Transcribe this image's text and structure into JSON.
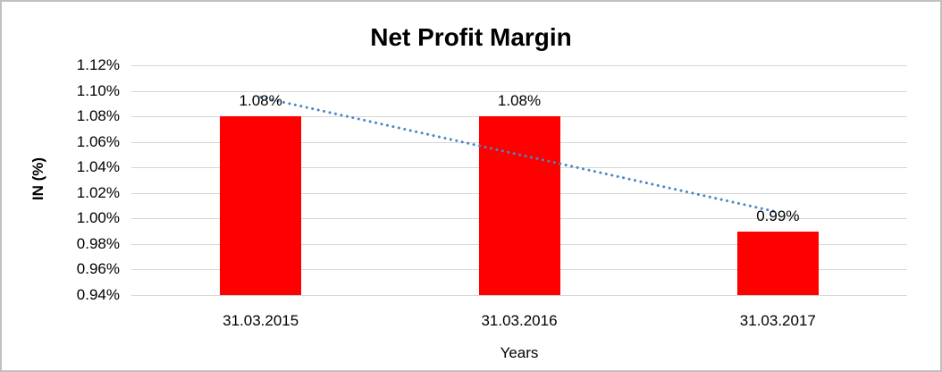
{
  "chart_data": {
    "type": "bar",
    "title": "Net Profit Margin",
    "xlabel": "Years",
    "ylabel": "IN (%)",
    "categories": [
      "31.03.2015",
      "31.03.2016",
      "31.03.2017"
    ],
    "values": [
      1.08,
      1.08,
      0.99
    ],
    "data_labels": [
      "1.08%",
      "1.08%",
      "0.99%"
    ],
    "unit": "%",
    "ylim": [
      0.94,
      1.12
    ],
    "ytick_step": 0.02,
    "ytick_labels": [
      "1.12%",
      "1.10%",
      "1.08%",
      "1.06%",
      "1.04%",
      "1.02%",
      "1.00%",
      "0.98%",
      "0.96%",
      "0.94%"
    ],
    "grid": true,
    "legend": false,
    "colors": {
      "bar": "#FF0000",
      "trendline": "#4A86C8",
      "gridline": "#D6D6D6",
      "text": "#000000",
      "frame_border": "#C0C0C0",
      "background": "#FFFFFF"
    },
    "trendline": {
      "type": "linear",
      "style": "dotted",
      "color": "#4A86C8",
      "start_value": 1.095,
      "end_value": 1.005
    }
  }
}
